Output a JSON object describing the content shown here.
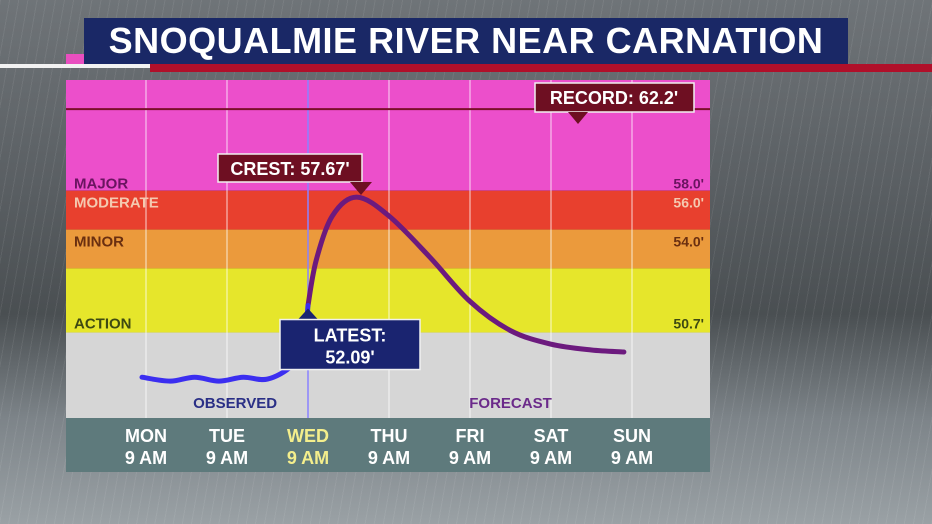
{
  "title": "SNOQUALMIE RIVER NEAR CARNATION",
  "colors": {
    "major": "#ec4fcb",
    "moderate": "#e8402e",
    "minor": "#eb9a3c",
    "action": "#e6e62b",
    "normal": "#d6d6d6",
    "observed_line": "#3b2ef0",
    "forecast_line": "#6c1a7e",
    "box_navy": "#1a2470",
    "box_maroon": "#6e0f22"
  },
  "chart_data": {
    "type": "line",
    "title": "SNOQUALMIE RIVER NEAR CARNATION",
    "categories": [
      {
        "day": "MON",
        "time": "9 AM"
      },
      {
        "day": "TUE",
        "time": "9 AM"
      },
      {
        "day": "WED",
        "time": "9 AM"
      },
      {
        "day": "THU",
        "time": "9 AM"
      },
      {
        "day": "FRI",
        "time": "9 AM"
      },
      {
        "day": "SAT",
        "time": "9 AM"
      },
      {
        "day": "SUN",
        "time": "9 AM"
      }
    ],
    "highlight_category": "WED",
    "ylim": [
      46.3,
      63.7
    ],
    "thresholds": [
      {
        "name": "MAJOR",
        "value": 58.0,
        "value_label": "58.0'"
      },
      {
        "name": "MODERATE",
        "value": 56.0,
        "value_label": "56.0'"
      },
      {
        "name": "MINOR",
        "value": 54.0,
        "value_label": "54.0'"
      },
      {
        "name": "ACTION",
        "value": 50.7,
        "value_label": "50.7'"
      }
    ],
    "record": {
      "label": "RECORD: 62.2'",
      "value": 62.2
    },
    "series": [
      {
        "name": "OBSERVED",
        "x": [
          -0.05,
          0.3,
          0.6,
          0.9,
          1.2,
          1.5,
          1.8,
          1.95,
          2.0
        ],
        "y": [
          48.4,
          48.2,
          48.4,
          48.2,
          48.4,
          48.3,
          49.0,
          50.2,
          52.09
        ]
      },
      {
        "name": "FORECAST",
        "x": [
          2.0,
          2.1,
          2.3,
          2.6,
          3.0,
          3.5,
          4.0,
          4.5,
          5.0,
          5.5,
          5.9
        ],
        "y": [
          52.09,
          54.4,
          56.7,
          57.67,
          56.7,
          54.6,
          52.3,
          50.8,
          50.1,
          49.8,
          49.7
        ]
      }
    ],
    "crest": {
      "label": "CREST: 57.67'",
      "value": 57.67,
      "x": 2.6
    },
    "latest": {
      "label_line1": "LATEST:",
      "label_line2": "52.09'",
      "value": 52.09,
      "x": 2.0
    },
    "now_x": 2.0,
    "observed_label": "OBSERVED",
    "forecast_label": "FORECAST",
    "grid": true
  }
}
